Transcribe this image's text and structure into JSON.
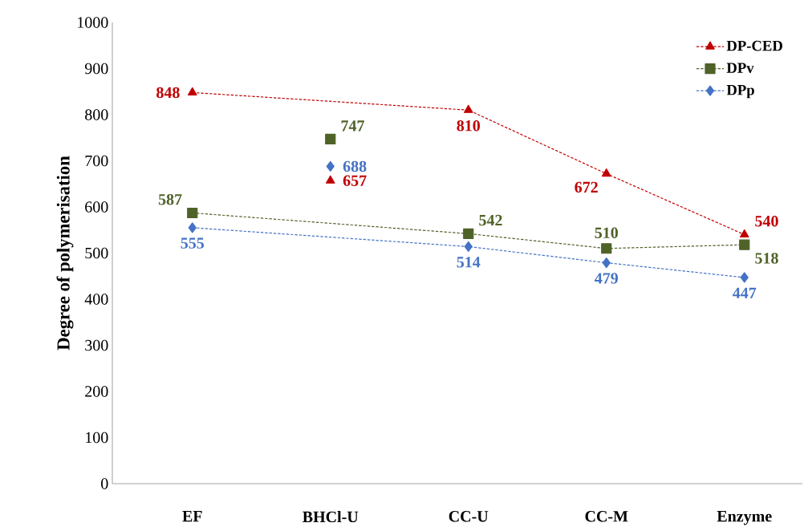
{
  "chart_data": {
    "type": "line",
    "ylabel": "Degree of polymerisation",
    "categories": [
      "EF",
      "BHCl-U",
      "CC-U",
      "CC-M",
      "Enzyme"
    ],
    "series": [
      {
        "name": "DP-CED",
        "color": "#c00000",
        "marker": "triangle",
        "line_style": "dashed",
        "values": [
          848,
          null,
          810,
          672,
          540
        ]
      },
      {
        "name": "DPv",
        "color": "#4f6228",
        "marker": "square",
        "line_style": "dashed",
        "values": [
          587,
          null,
          542,
          510,
          518
        ]
      },
      {
        "name": "DPp",
        "color": "#4472c4",
        "marker": "diamond",
        "line_style": "dashed",
        "values": [
          555,
          null,
          514,
          479,
          447
        ]
      },
      {
        "type": "scatter",
        "color": "#c00000",
        "marker": "triangle",
        "values": [
          null,
          657,
          null,
          null,
          null
        ]
      },
      {
        "type": "scatter",
        "color": "#4f6228",
        "marker": "square",
        "values": [
          null,
          747,
          null,
          null,
          null
        ]
      },
      {
        "type": "scatter",
        "color": "#4472c4",
        "marker": "diamond",
        "values": [
          null,
          688,
          null,
          null,
          null
        ]
      }
    ],
    "ylim": [
      0,
      1000
    ],
    "yticks": [
      0,
      100,
      200,
      300,
      400,
      500,
      600,
      700,
      800,
      900,
      1000
    ],
    "grid": false,
    "legend": "top right",
    "data_labels": true
  }
}
